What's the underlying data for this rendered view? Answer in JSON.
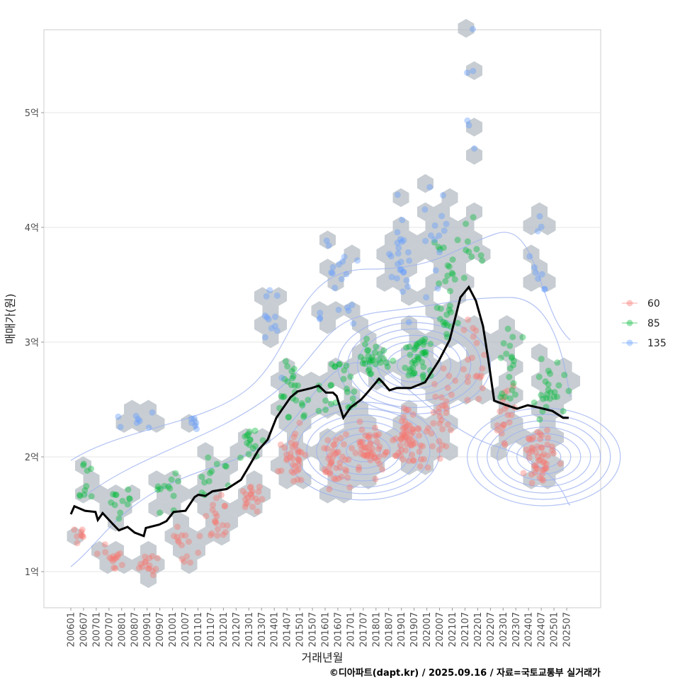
{
  "chart_data": {
    "type": "scatter",
    "xlabel": "거래년월",
    "ylabel": "매매가(원)",
    "caption": "©디아파트(dapt.kr) / 2025.09.16 / 자료=국토교통부 실거래가",
    "x_ticks": [
      "200601",
      "200607",
      "200701",
      "200707",
      "200801",
      "200807",
      "200901",
      "200907",
      "201001",
      "201007",
      "201101",
      "201107",
      "201201",
      "201207",
      "201301",
      "201307",
      "201401",
      "201407",
      "201501",
      "201507",
      "201601",
      "201607",
      "201701",
      "201707",
      "201801",
      "201807",
      "201901",
      "201907",
      "202001",
      "202007",
      "202101",
      "202107",
      "202201",
      "202207",
      "202301",
      "202307",
      "202401",
      "202407",
      "202501",
      "202507"
    ],
    "y_ticks": [
      {
        "value": 1,
        "label": "1억"
      },
      {
        "value": 2,
        "label": "2억"
      },
      {
        "value": 3,
        "label": "3억"
      },
      {
        "value": 4,
        "label": "4억"
      },
      {
        "value": 5,
        "label": "5억"
      }
    ],
    "ylim_eok": [
      0.68,
      5.72
    ],
    "xlim_year": [
      2005.9,
      2027.85
    ],
    "grid": true,
    "legend": {
      "placement": "right",
      "entries": [
        {
          "label": "60",
          "color": "#F8766D"
        },
        {
          "label": "85",
          "color": "#00BA38"
        },
        {
          "label": "135",
          "color": "#619CFF"
        }
      ]
    },
    "line_series": {
      "name": "moving average",
      "color": "#000000",
      "points": [
        [
          2006.0,
          1.5
        ],
        [
          2006.14,
          1.57
        ],
        [
          2006.56,
          1.53
        ],
        [
          2006.97,
          1.52
        ],
        [
          2007.06,
          1.45
        ],
        [
          2007.25,
          1.51
        ],
        [
          2007.67,
          1.41
        ],
        [
          2007.89,
          1.36
        ],
        [
          2008.23,
          1.39
        ],
        [
          2008.51,
          1.34
        ],
        [
          2008.87,
          1.31
        ],
        [
          2008.95,
          1.38
        ],
        [
          2009.48,
          1.41
        ],
        [
          2009.76,
          1.44
        ],
        [
          2010.04,
          1.52
        ],
        [
          2010.51,
          1.53
        ],
        [
          2010.87,
          1.65
        ],
        [
          2011.01,
          1.67
        ],
        [
          2011.29,
          1.66
        ],
        [
          2011.57,
          1.7
        ],
        [
          2012.13,
          1.72
        ],
        [
          2012.69,
          1.8
        ],
        [
          2012.96,
          1.9
        ],
        [
          2013.38,
          2.06
        ],
        [
          2013.74,
          2.15
        ],
        [
          2014.08,
          2.34
        ],
        [
          2014.36,
          2.43
        ],
        [
          2014.64,
          2.52
        ],
        [
          2014.91,
          2.57
        ],
        [
          2015.47,
          2.6
        ],
        [
          2015.75,
          2.62
        ],
        [
          2016.03,
          2.56
        ],
        [
          2016.31,
          2.56
        ],
        [
          2016.45,
          2.53
        ],
        [
          2016.72,
          2.34
        ],
        [
          2017.0,
          2.43
        ],
        [
          2017.42,
          2.5
        ],
        [
          2017.7,
          2.57
        ],
        [
          2018.12,
          2.68
        ],
        [
          2018.26,
          2.65
        ],
        [
          2018.53,
          2.58
        ],
        [
          2018.81,
          2.6
        ],
        [
          2019.37,
          2.6
        ],
        [
          2019.93,
          2.65
        ],
        [
          2020.48,
          2.84
        ],
        [
          2020.9,
          3.02
        ],
        [
          2021.32,
          3.39
        ],
        [
          2021.65,
          3.48
        ],
        [
          2021.93,
          3.36
        ],
        [
          2022.21,
          3.14
        ],
        [
          2022.43,
          2.83
        ],
        [
          2022.65,
          2.49
        ],
        [
          2023.13,
          2.45
        ],
        [
          2023.55,
          2.42
        ],
        [
          2023.97,
          2.45
        ],
        [
          2024.38,
          2.43
        ],
        [
          2024.94,
          2.4
        ],
        [
          2025.36,
          2.34
        ],
        [
          2025.58,
          2.34
        ]
      ]
    },
    "point_clusters": {
      "60": [
        [
          2006.3,
          1.33,
          0.3,
          0.05,
          8
        ],
        [
          2007.7,
          1.1,
          0.5,
          0.06,
          15
        ],
        [
          2009,
          1.05,
          0.5,
          0.06,
          15
        ],
        [
          2010.5,
          1.25,
          0.5,
          0.08,
          15
        ],
        [
          2011.8,
          1.45,
          0.5,
          0.1,
          20
        ],
        [
          2013,
          1.65,
          0.5,
          0.05,
          20
        ],
        [
          2014.8,
          2.0,
          0.5,
          0.12,
          35
        ],
        [
          2016.5,
          1.95,
          0.6,
          0.1,
          40
        ],
        [
          2017.8,
          2.05,
          0.6,
          0.1,
          50
        ],
        [
          2019.3,
          2.15,
          0.7,
          0.12,
          60
        ],
        [
          2020.5,
          2.35,
          0.5,
          0.2,
          30
        ],
        [
          2021.8,
          2.8,
          0.5,
          0.2,
          20
        ],
        [
          2023,
          2.3,
          0.5,
          0.2,
          20
        ],
        [
          2024.5,
          2.0,
          0.6,
          0.12,
          50
        ]
      ],
      "85": [
        [
          2006.5,
          1.8,
          0.4,
          0.1,
          10
        ],
        [
          2008,
          1.6,
          0.6,
          0.1,
          12
        ],
        [
          2009.8,
          1.7,
          0.6,
          0.08,
          12
        ],
        [
          2011.5,
          1.85,
          0.6,
          0.1,
          12
        ],
        [
          2013,
          2.1,
          0.5,
          0.1,
          15
        ],
        [
          2014.8,
          2.6,
          0.6,
          0.15,
          25
        ],
        [
          2016.5,
          2.6,
          0.6,
          0.15,
          25
        ],
        [
          2018,
          2.85,
          0.6,
          0.1,
          30
        ],
        [
          2019.7,
          2.85,
          0.6,
          0.12,
          40
        ],
        [
          2020.8,
          3.4,
          0.5,
          0.3,
          30
        ],
        [
          2021.8,
          3.7,
          0.4,
          0.2,
          10
        ],
        [
          2023.3,
          2.8,
          0.6,
          0.2,
          20
        ],
        [
          2024.8,
          2.6,
          0.6,
          0.15,
          25
        ]
      ],
      "135": [
        [
          2008.5,
          2.32,
          1,
          0.04,
          8
        ],
        [
          2010.8,
          2.3,
          0.6,
          0.05,
          6
        ],
        [
          2014,
          3.2,
          0.6,
          0.3,
          12
        ],
        [
          2016.5,
          3.6,
          0.8,
          0.2,
          20
        ],
        [
          2018.8,
          3.7,
          0.8,
          0.2,
          25
        ],
        [
          2020.5,
          3.9,
          0.6,
          0.2,
          15
        ],
        [
          2021.8,
          5.0,
          0.3,
          0.3,
          6
        ],
        [
          2024.5,
          3.8,
          0.7,
          0.3,
          10
        ]
      ]
    },
    "density_centers": [
      [
        2017.5,
        2.05
      ],
      [
        2019.5,
        2.8
      ],
      [
        2024.6,
        2.0
      ]
    ]
  }
}
